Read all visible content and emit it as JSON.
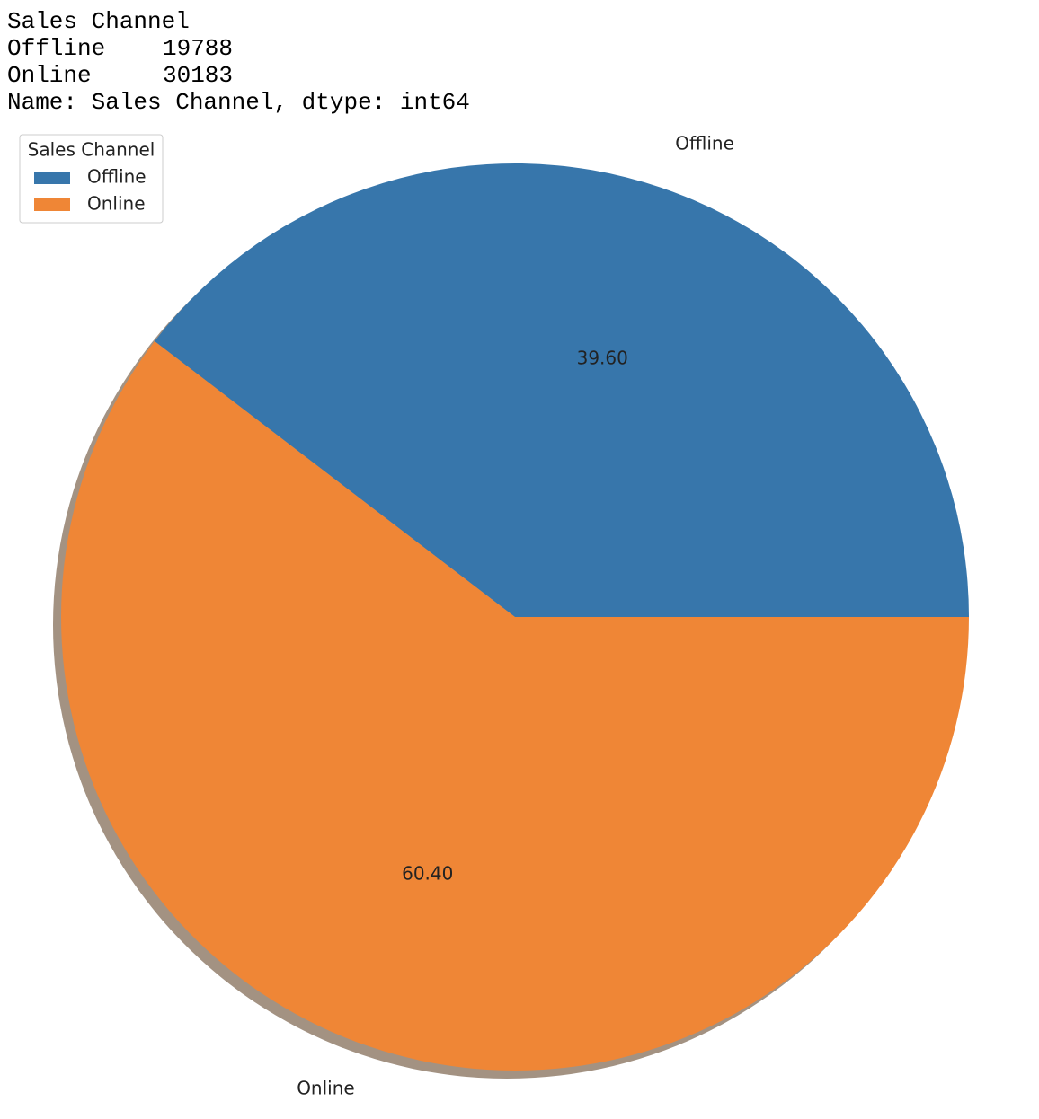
{
  "output": {
    "header": "Sales Channel",
    "rows": [
      {
        "label": "Offline",
        "value": 19788
      },
      {
        "label": "Online",
        "value": 30183
      }
    ],
    "footer": "Name: Sales Channel, dtype: int64"
  },
  "chart_data": {
    "type": "pie",
    "categories": [
      "Offline",
      "Online"
    ],
    "values": [
      39.6,
      60.4
    ],
    "value_labels": [
      "39.60",
      "60.40"
    ],
    "colors": [
      "#3776ab",
      "#ef8636"
    ],
    "legend": {
      "title": "Sales Channel",
      "position": "upper left"
    },
    "shadow": true,
    "start_angle": 0
  }
}
